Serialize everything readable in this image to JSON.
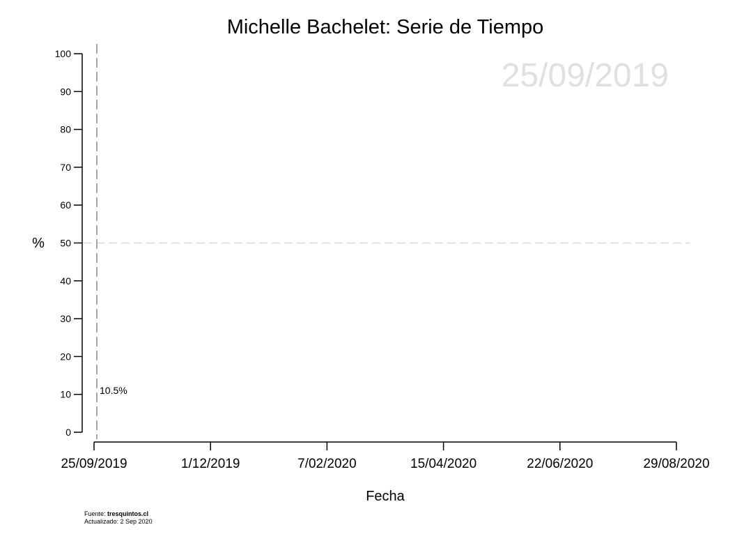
{
  "chart_data": {
    "type": "line",
    "title": "Michelle Bachelet: Serie de Tiempo",
    "xlabel": "Fecha",
    "ylabel": "%",
    "x_ticks": [
      "25/09/2019",
      "1/12/2019",
      "7/02/2020",
      "15/04/2020",
      "22/06/2020",
      "29/08/2020"
    ],
    "x_range": [
      "2019-09-25",
      "2020-08-29"
    ],
    "ylim": [
      0,
      100
    ],
    "y_ticks": [
      0,
      10,
      20,
      30,
      40,
      50,
      60,
      70,
      80,
      90,
      100
    ],
    "reference_line_y": 50,
    "current_date_line": "2019-09-25",
    "watermark_date": "25/09/2019",
    "series": [
      {
        "points": [
          {
            "x": "2019-09-25",
            "y": 10.5
          }
        ],
        "color": "#000000"
      }
    ],
    "annotations": [
      {
        "x": "2019-09-25",
        "y": 10.5,
        "text": "10.5%"
      }
    ],
    "grid": false
  },
  "source": {
    "prefix": "Fuente: ",
    "site": "tresquintos.cl",
    "updated": "Actualizado: 2 Sep 2020"
  },
  "colors": {
    "reference_line": "#d9d9d9",
    "date_line": "#888888",
    "watermark": "#e0e0e0"
  }
}
